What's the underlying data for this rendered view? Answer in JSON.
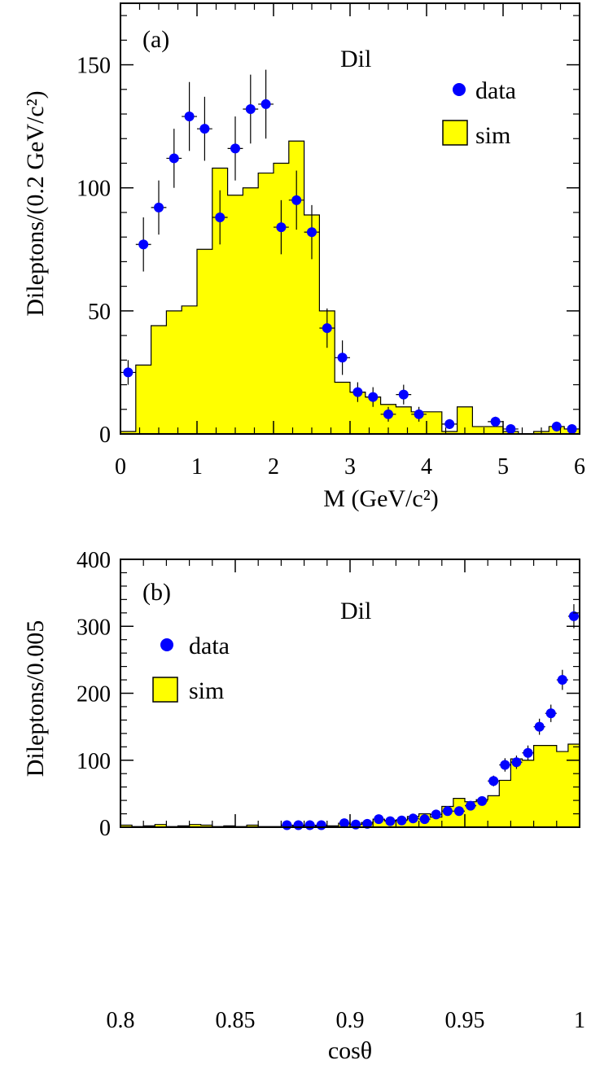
{
  "chart_data": [
    {
      "type": "bar",
      "panel_label": "(a)",
      "annotation": "Dil",
      "xlabel": "M (GeV/c²)",
      "ylabel": "Dileptons/(0.2 GeV/c²)",
      "xlim": [
        0,
        6
      ],
      "ylim": [
        0,
        175
      ],
      "xticks": [
        0,
        1,
        2,
        3,
        4,
        5,
        6
      ],
      "yticks": [
        0,
        50,
        100,
        150
      ],
      "legend": {
        "placement": "top-right",
        "entries": [
          "data",
          "sim"
        ]
      },
      "series": [
        {
          "name": "sim",
          "kind": "histogram",
          "color": "#ffff00",
          "bin_edges": [
            0,
            0.2,
            0.4,
            0.6,
            0.8,
            1.0,
            1.2,
            1.4,
            1.6,
            1.8,
            2.0,
            2.2,
            2.4,
            2.6,
            2.8,
            3.0,
            3.2,
            3.4,
            3.6,
            3.8,
            4.0,
            4.2,
            4.4,
            4.6,
            4.8,
            5.0,
            5.2,
            5.4,
            5.6,
            5.8,
            6.0
          ],
          "values": [
            1,
            28,
            44,
            50,
            52,
            75,
            108,
            97,
            100,
            106,
            110,
            119,
            89,
            50,
            21,
            17,
            15,
            12,
            11,
            9,
            9,
            1,
            11,
            3,
            3,
            1,
            0,
            1,
            3,
            2
          ]
        },
        {
          "name": "data",
          "kind": "points",
          "color": "#0000ff",
          "x": [
            0.1,
            0.3,
            0.5,
            0.7,
            0.9,
            1.1,
            1.3,
            1.5,
            1.7,
            1.9,
            2.1,
            2.3,
            2.5,
            2.7,
            2.9,
            3.1,
            3.3,
            3.5,
            3.7,
            3.9,
            4.3,
            4.9,
            5.1,
            5.7,
            5.9
          ],
          "y": [
            25,
            77,
            92,
            112,
            129,
            124,
            88,
            116,
            132,
            134,
            84,
            95,
            82,
            43,
            31,
            17,
            15,
            8,
            16,
            8,
            4,
            5,
            2,
            3,
            2
          ],
          "err": [
            5,
            11,
            11,
            12,
            14,
            13,
            11,
            13,
            14,
            14,
            11,
            12,
            11,
            8,
            7,
            4,
            4,
            3,
            4,
            3,
            2,
            2,
            1,
            2,
            1
          ]
        }
      ]
    },
    {
      "type": "bar",
      "panel_label": "(b)",
      "annotation": "Dil",
      "xlabel": "cosθ",
      "ylabel": "Dileptons/0.005",
      "xlim": [
        0.8,
        1.0
      ],
      "ylim": [
        0,
        400
      ],
      "xticks": [
        "0.8",
        "0.85",
        "0.9",
        "0.95",
        "1"
      ],
      "yticks": [
        0,
        100,
        200,
        300,
        400
      ],
      "legend": {
        "placement": "top-left",
        "entries": [
          "data",
          "sim"
        ]
      },
      "series": [
        {
          "name": "sim",
          "kind": "histogram",
          "color": "#ffff00",
          "bin_edges": [
            0.8,
            0.805,
            0.81,
            0.815,
            0.82,
            0.825,
            0.83,
            0.835,
            0.84,
            0.845,
            0.85,
            0.855,
            0.86,
            0.865,
            0.87,
            0.875,
            0.88,
            0.885,
            0.89,
            0.895,
            0.9,
            0.905,
            0.91,
            0.915,
            0.92,
            0.925,
            0.93,
            0.935,
            0.94,
            0.945,
            0.95,
            0.955,
            0.96,
            0.965,
            0.97,
            0.975,
            0.98,
            0.985,
            0.99,
            0.995,
            1.0
          ],
          "values": [
            3,
            1,
            2,
            4,
            1,
            2,
            4,
            3,
            1,
            2,
            1,
            3,
            1,
            1,
            1,
            2,
            1,
            2,
            2,
            6,
            4,
            7,
            12,
            10,
            11,
            16,
            20,
            15,
            31,
            43,
            38,
            41,
            47,
            70,
            102,
            100,
            122,
            122,
            113,
            124
          ]
        },
        {
          "name": "data",
          "kind": "points",
          "color": "#0000ff",
          "x": [
            0.8725,
            0.8775,
            0.8825,
            0.8875,
            0.8975,
            0.9025,
            0.9075,
            0.9125,
            0.9175,
            0.9225,
            0.9275,
            0.9325,
            0.9375,
            0.9425,
            0.9475,
            0.9525,
            0.9575,
            0.9625,
            0.9675,
            0.9725,
            0.9775,
            0.9825,
            0.9875,
            0.9925,
            0.9975
          ],
          "y": [
            3,
            3,
            3,
            3,
            6,
            4,
            5,
            12,
            9,
            10,
            13,
            12,
            19,
            24,
            24,
            32,
            39,
            69,
            93,
            97,
            111,
            150,
            170,
            220,
            315
          ],
          "err": [
            2,
            2,
            2,
            2,
            2,
            2,
            2,
            3,
            3,
            3,
            4,
            3,
            4,
            5,
            5,
            6,
            6,
            8,
            10,
            10,
            11,
            12,
            13,
            15,
            18
          ]
        }
      ]
    }
  ]
}
